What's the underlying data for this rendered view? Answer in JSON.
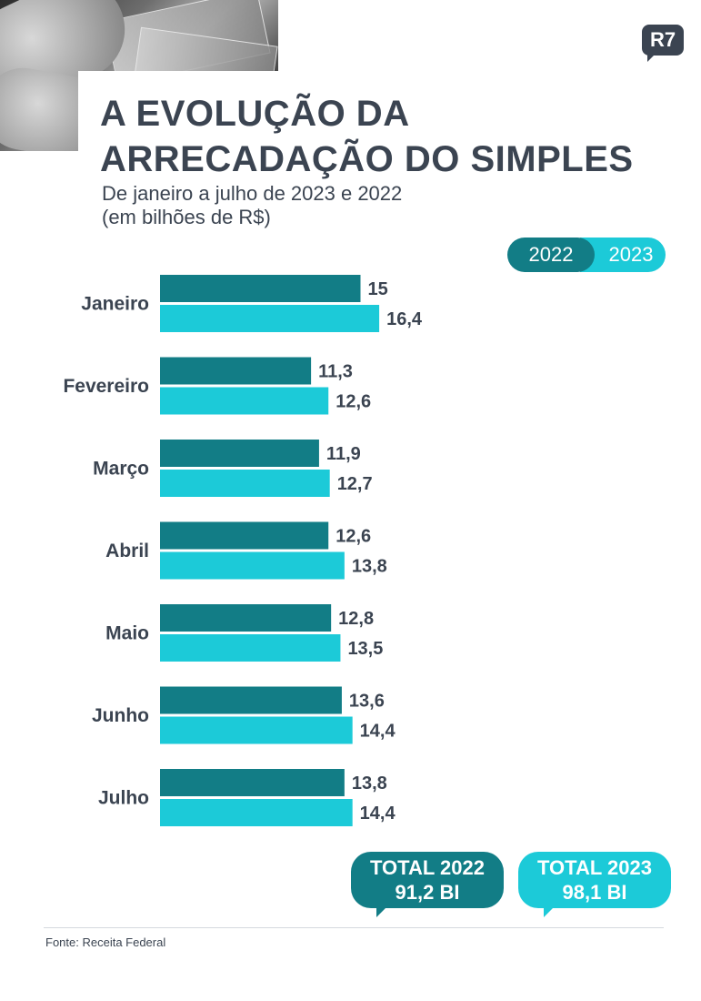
{
  "header": {
    "title_line1": "A EVOLUÇÃO DA",
    "title_line2": "ARRECADAÇÃO DO SIMPLES",
    "subtitle_line1": "De janeiro a julho de 2023 e 2022",
    "subtitle_line2": "(em bilhões de R$)",
    "logo": "R7"
  },
  "legend": {
    "a": "2022",
    "b": "2023"
  },
  "colors": {
    "series_2022": "#127d86",
    "series_2023": "#1ccad8",
    "text": "#3b4451"
  },
  "chart_data": {
    "type": "bar",
    "orientation": "horizontal",
    "title": "A EVOLUÇÃO DA ARRECADAÇÃO DO SIMPLES",
    "subtitle": "De janeiro a julho de 2023 e 2022 (em bilhões de R$)",
    "categories": [
      "Janeiro",
      "Fevereiro",
      "Março",
      "Abril",
      "Maio",
      "Junho",
      "Julho"
    ],
    "series": [
      {
        "name": "2022",
        "values": [
          15,
          11.3,
          11.9,
          12.6,
          12.8,
          13.6,
          13.8
        ],
        "labels": [
          "15",
          "11,3",
          "11,9",
          "12,6",
          "12,8",
          "13,6",
          "13,8"
        ]
      },
      {
        "name": "2023",
        "values": [
          16.4,
          12.6,
          12.7,
          13.8,
          13.5,
          14.4,
          14.4
        ],
        "labels": [
          "16,4",
          "12,6",
          "12,7",
          "13,8",
          "13,5",
          "14,4",
          "14,4"
        ]
      }
    ],
    "legend_position": "top-right",
    "grid": false
  },
  "totals": {
    "t2022_label": "TOTAL 2022",
    "t2022_value": "91,2 BI",
    "t2023_label": "TOTAL 2023",
    "t2023_value": "98,1 BI"
  },
  "footer": {
    "source": "Fonte: Receita Federal"
  }
}
